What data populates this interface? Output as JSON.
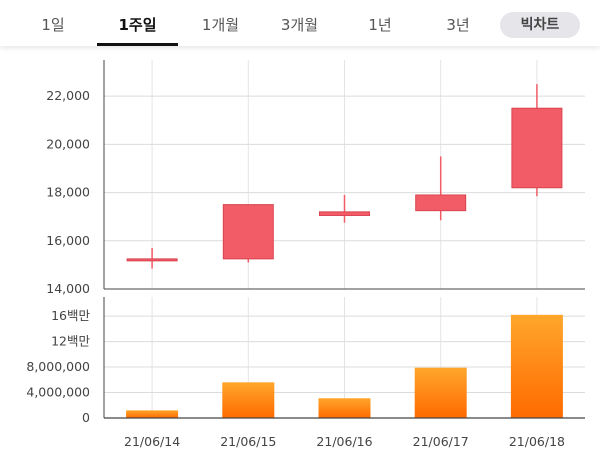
{
  "tabs": [
    {
      "label": "1일",
      "active": false
    },
    {
      "label": "1주일",
      "active": true
    },
    {
      "label": "1개월",
      "active": false
    },
    {
      "label": "3개월",
      "active": false
    },
    {
      "label": "1년",
      "active": false
    },
    {
      "label": "3년",
      "active": false
    }
  ],
  "chart_mode_button": "빅차트",
  "colors": {
    "candle": "#f25c66",
    "volume_top": "#ffa62b",
    "volume_bottom": "#ff6a00"
  },
  "chart_data": [
    {
      "type": "candlestick",
      "categories": [
        "21/06/14",
        "21/06/15",
        "21/06/16",
        "21/06/17",
        "21/06/18"
      ],
      "series": [
        {
          "open": [
            15200,
            15250,
            17050,
            17250,
            18200
          ],
          "close": [
            15250,
            17500,
            17200,
            17900,
            21500
          ],
          "high": [
            15700,
            17500,
            17900,
            19500,
            22500
          ],
          "low": [
            14850,
            15100,
            16750,
            16850,
            17850
          ]
        }
      ],
      "ylim": [
        14000,
        23500
      ],
      "y_ticks": [
        "14,000",
        "16,000",
        "18,000",
        "20,000",
        "22,000"
      ],
      "y_tick_values": [
        14000,
        16000,
        18000,
        20000,
        22000
      ],
      "grid": true
    },
    {
      "type": "bar",
      "categories": [
        "21/06/14",
        "21/06/15",
        "21/06/16",
        "21/06/17",
        "21/06/18"
      ],
      "values": [
        1200000,
        5600000,
        3100000,
        7900000,
        16200000
      ],
      "ylim": [
        0,
        19000000
      ],
      "y_ticks": [
        "0",
        "4,000,000",
        "8,000,000",
        "12백만",
        "16백만"
      ],
      "y_tick_values": [
        0,
        4000000,
        8000000,
        12000000,
        16000000
      ],
      "x_tick_labels": [
        "21/06/14",
        "21/06/15",
        "21/06/16",
        "21/06/17",
        "21/06/18"
      ],
      "grid": true
    }
  ]
}
